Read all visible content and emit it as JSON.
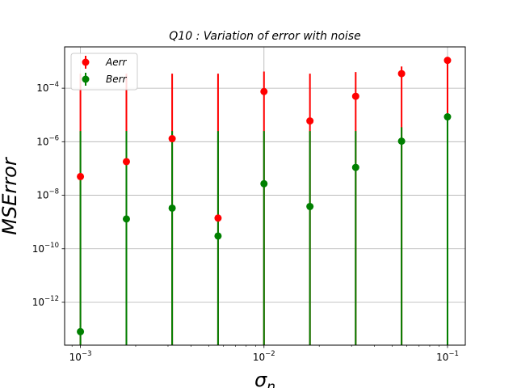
{
  "chart_data": {
    "type": "scatter",
    "title": "Q10 : Variation of error with noise",
    "xlabel": "σ_n",
    "ylabel": "MSError",
    "xscale": "log",
    "yscale": "log",
    "xlim": [
      0.00082,
      0.125
    ],
    "ylim": [
      2.5e-14,
      0.0035
    ],
    "grid": true,
    "legend_position": "upper-left",
    "x": [
      0.001,
      0.00178,
      0.00316,
      0.00562,
      0.01,
      0.0178,
      0.0316,
      0.0562,
      0.1
    ],
    "x_ticks": [
      {
        "value": 0.001,
        "base": "10",
        "exp": "−3"
      },
      {
        "value": 0.01,
        "base": "10",
        "exp": "−2"
      },
      {
        "value": 0.1,
        "base": "10",
        "exp": "−1"
      }
    ],
    "y_ticks": [
      {
        "value": 1e-12,
        "base": "10",
        "exp": "−12"
      },
      {
        "value": 1e-10,
        "base": "10",
        "exp": "−10"
      },
      {
        "value": 1e-08,
        "base": "10",
        "exp": "−8"
      },
      {
        "value": 1e-06,
        "base": "10",
        "exp": "−6"
      },
      {
        "value": 0.0001,
        "base": "10",
        "exp": "−4"
      }
    ],
    "series": [
      {
        "name": "Aerr",
        "color": "#ff0000",
        "values": [
          5e-08,
          1.8e-07,
          1.3e-06,
          1.4e-09,
          7.5e-05,
          6e-06,
          5e-05,
          0.00035,
          0.0011
        ],
        "err_upper": [
          0.00035,
          0.00035,
          0.00035,
          0.00035,
          0.00042,
          0.00035,
          0.0004,
          0.00065,
          0.0011
        ]
      },
      {
        "name": "Berr",
        "color": "#008000",
        "values": [
          8e-14,
          1.3e-09,
          3.3e-09,
          3e-10,
          2.7e-08,
          3.8e-09,
          1.1e-07,
          1.05e-06,
          8.5e-06
        ],
        "err_upper": [
          2.5e-06,
          2.5e-06,
          2.5e-06,
          2.5e-06,
          2.5e-06,
          2.5e-06,
          2.5e-06,
          3.5e-06,
          8.5e-06
        ]
      }
    ]
  }
}
